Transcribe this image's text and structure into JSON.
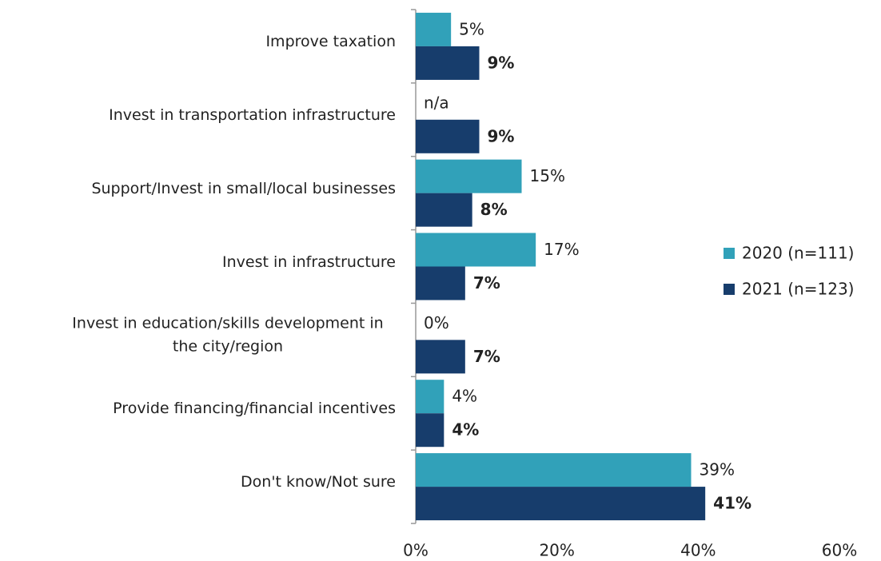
{
  "chart_data": {
    "type": "hbar",
    "categories": [
      "Improve taxation",
      "Invest in transportation infrastructure",
      "Support/Invest in small/local businesses",
      "Invest in infrastructure",
      "Invest in education/skills development in the city/region",
      "Provide financing/financial incentives",
      "Don't know/Not sure"
    ],
    "series": [
      {
        "name": "2020 (n=111)",
        "color": "#31a1b9",
        "values": [
          5,
          null,
          15,
          17,
          0,
          4,
          39
        ],
        "value_labels": [
          "5%",
          "n/a",
          "15%",
          "17%",
          "0%",
          "4%",
          "39%"
        ]
      },
      {
        "name": "2021 (n=123)",
        "color": "#173d6c",
        "values": [
          9,
          9,
          8,
          7,
          7,
          4,
          41
        ],
        "value_labels": [
          "9%",
          "9%",
          "8%",
          "7%",
          "7%",
          "4%",
          "41%"
        ]
      }
    ],
    "xlim": [
      0,
      60
    ],
    "xticks": [
      {
        "value": 0,
        "label": "0%"
      },
      {
        "value": 20,
        "label": "20%"
      },
      {
        "value": 40,
        "label": "40%"
      },
      {
        "value": 60,
        "label": "60%"
      }
    ],
    "grid": false,
    "legend": "right"
  }
}
